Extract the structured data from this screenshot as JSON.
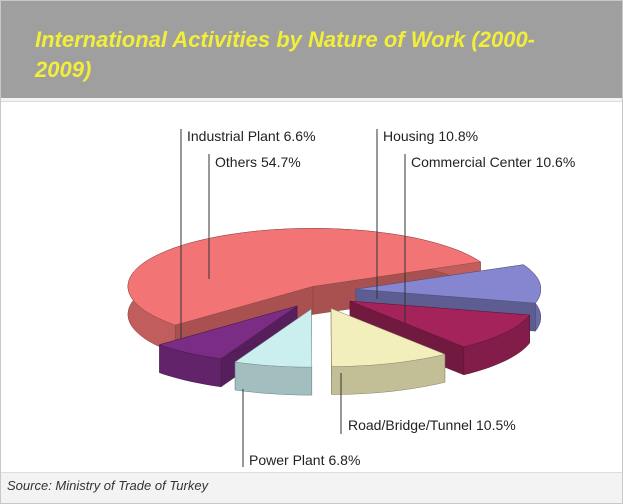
{
  "chart_data": {
    "type": "pie3d",
    "title": "International Activities by Nature of Work (2000-2009)",
    "source": "Source: Ministry of Trade of Turkey",
    "categories": [
      "Housing",
      "Commercial Center",
      "Road/Bridge/Tunnel",
      "Power Plant",
      "Industrial Plant",
      "Others"
    ],
    "values": [
      10.8,
      10.6,
      10.5,
      6.8,
      6.6,
      54.7
    ],
    "value_labels": [
      "10.8%",
      "10.6%",
      "10.5%",
      "6.8%",
      "6.6%",
      "54.7%"
    ],
    "colors": [
      "#8585d0",
      "#a3235a",
      "#f2efbd",
      "#cbeeee",
      "#7b2c84",
      "#f27474"
    ]
  }
}
